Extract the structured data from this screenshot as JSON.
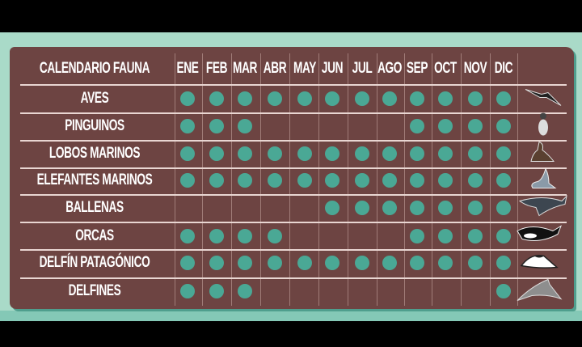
{
  "colors": {
    "board": "#6d4442",
    "background": "#a9dac8",
    "dot": "#4aa895",
    "text": "#ffffff"
  },
  "header": {
    "title": "CALENDARIO FAUNA"
  },
  "months": [
    "ENE",
    "FEB",
    "MAR",
    "ABR",
    "MAY",
    "JUN",
    "JUL",
    "AGO",
    "SEP",
    "OCT",
    "NOV",
    "DIC"
  ],
  "rows": [
    {
      "label": "AVES",
      "icon": "bird-icon",
      "months": [
        1,
        1,
        1,
        1,
        1,
        1,
        1,
        1,
        1,
        1,
        1,
        1
      ]
    },
    {
      "label": "PINGUINOS",
      "icon": "penguin-icon",
      "months": [
        1,
        1,
        1,
        0,
        0,
        0,
        0,
        0,
        1,
        1,
        1,
        1
      ]
    },
    {
      "label": "LOBOS MARINOS",
      "icon": "sea-lion-icon",
      "months": [
        1,
        1,
        1,
        1,
        1,
        1,
        1,
        1,
        1,
        1,
        1,
        1
      ]
    },
    {
      "label": "ELEFANTES MARINOS",
      "icon": "elephant-seal-icon",
      "months": [
        1,
        1,
        1,
        1,
        1,
        1,
        1,
        1,
        1,
        1,
        1,
        1
      ]
    },
    {
      "label": "BALLENAS",
      "icon": "whale-icon",
      "months": [
        0,
        0,
        0,
        0,
        0,
        1,
        1,
        1,
        1,
        1,
        1,
        1
      ]
    },
    {
      "label": "ORCAS",
      "icon": "orca-icon",
      "months": [
        1,
        1,
        1,
        1,
        0,
        0,
        0,
        0,
        1,
        1,
        1,
        1
      ]
    },
    {
      "label": "DELFÍN PATAGÓNICO",
      "icon": "patagonian-dolphin-icon",
      "months": [
        1,
        1,
        1,
        1,
        1,
        1,
        1,
        1,
        1,
        1,
        1,
        1
      ]
    },
    {
      "label": "DELFINES",
      "icon": "dolphin-icon",
      "months": [
        1,
        1,
        1,
        0,
        0,
        0,
        0,
        0,
        0,
        0,
        0,
        1
      ]
    }
  ]
}
